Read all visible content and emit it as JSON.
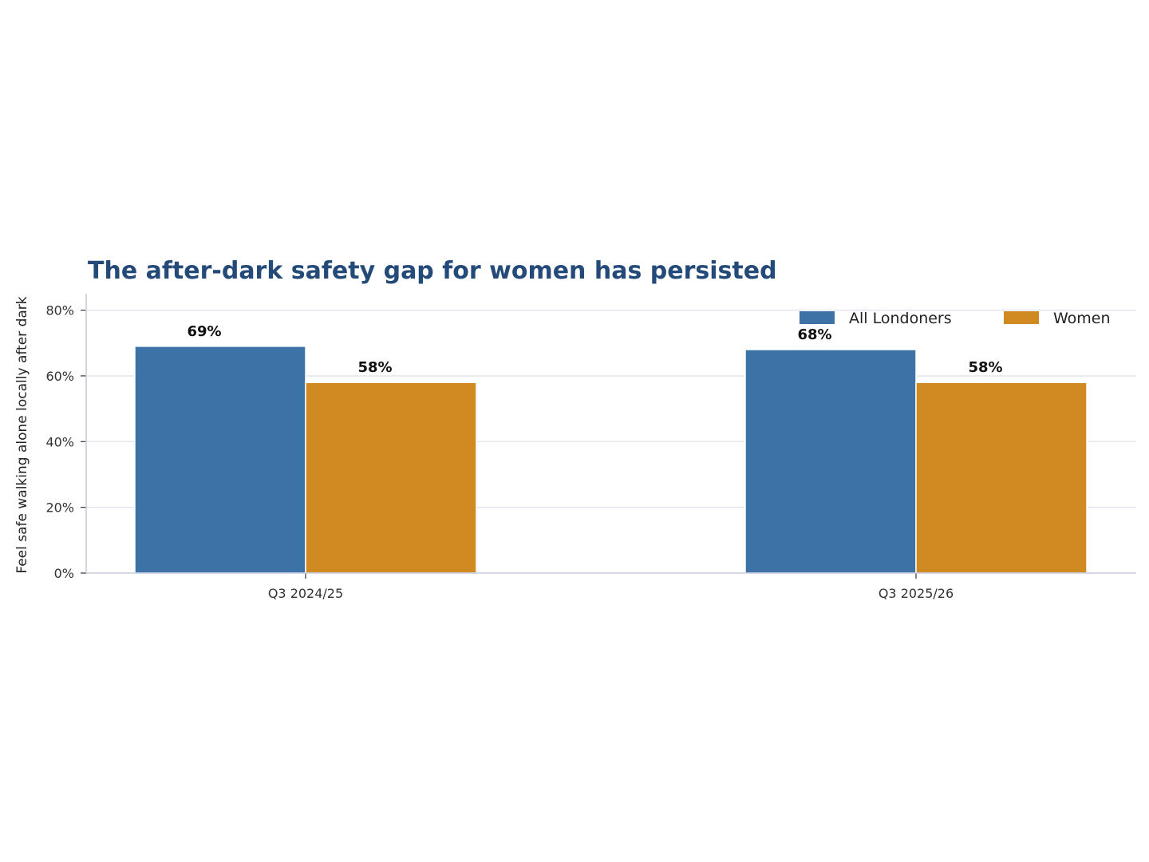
{
  "chart_data": {
    "type": "bar",
    "title": "The after-dark safety gap for women has persisted",
    "xlabel": "",
    "ylabel": "Feel safe walking alone locally after dark",
    "categories": [
      "Q3 2024/25",
      "Q3 2025/26"
    ],
    "series": [
      {
        "name": "All Londoners",
        "values": [
          69,
          68
        ],
        "labels": [
          "69%",
          "68%"
        ],
        "color": "#3d72a6"
      },
      {
        "name": "Women",
        "values": [
          58,
          58
        ],
        "labels": [
          "58%",
          "58%"
        ],
        "color": "#d08a21"
      }
    ],
    "ylim": [
      0,
      85
    ],
    "yticks": [
      0,
      20,
      40,
      60,
      80
    ],
    "ytick_labels": [
      "0%",
      "20%",
      "40%",
      "60%",
      "80%"
    ],
    "grid": true,
    "legend": "top-right",
    "title_color": "#234a78",
    "axis_color": "#c5cbdc"
  }
}
